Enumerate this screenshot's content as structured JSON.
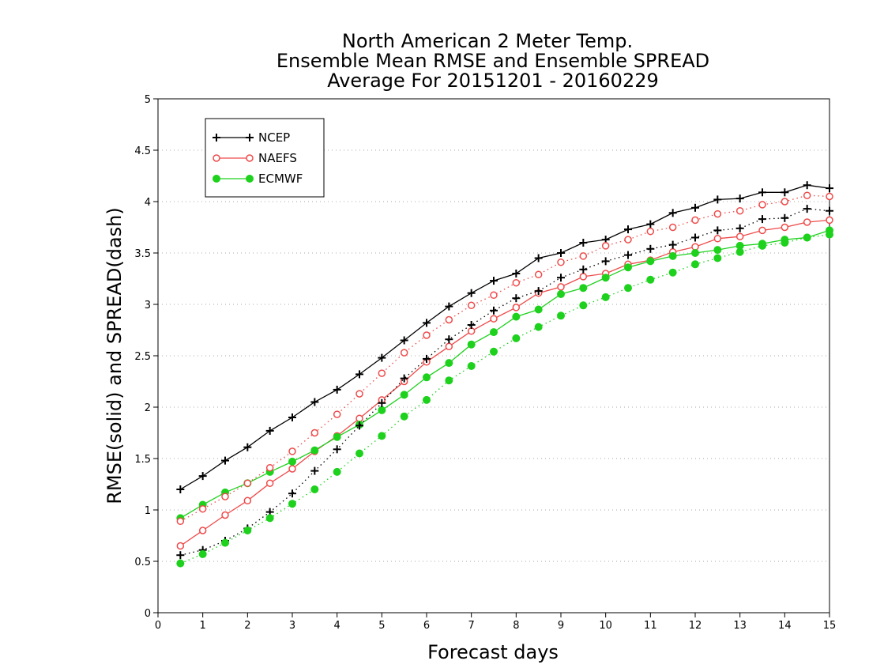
{
  "chart_data": {
    "type": "line",
    "title": [
      "North American 2 Meter Temp.",
      "Ensemble Mean RMSE and Ensemble SPREAD",
      "Average For 20151201 - 20160229"
    ],
    "xlabel": "Forecast days",
    "ylabel": "RMSE(solid) and SPREAD(dash)",
    "xlim": [
      0,
      15
    ],
    "ylim": [
      0,
      5
    ],
    "xticks": [
      0,
      1,
      2,
      3,
      4,
      5,
      6,
      7,
      8,
      9,
      10,
      11,
      12,
      13,
      14,
      15
    ],
    "xtick_labels": [
      "0",
      "1",
      "2",
      "3",
      "4",
      "5",
      "6",
      "7",
      "8",
      "9",
      "10",
      "11",
      "12",
      "13",
      "14",
      "15"
    ],
    "yticks": [
      0,
      0.5,
      1,
      1.5,
      2,
      2.5,
      3,
      3.5,
      4,
      4.5,
      5
    ],
    "ytick_labels": [
      "0",
      "0.5",
      "1",
      "1.5",
      "2",
      "2.5",
      "3",
      "3.5",
      "4",
      "4.5",
      "5"
    ],
    "grid": "horizontal dotted",
    "legend_placement": "top-left",
    "x": [
      0.5,
      1,
      1.5,
      2,
      2.5,
      3,
      3.5,
      4,
      4.5,
      5,
      5.5,
      6,
      6.5,
      7,
      7.5,
      8,
      8.5,
      9,
      9.5,
      10,
      10.5,
      11,
      11.5,
      12,
      12.5,
      13,
      13.5,
      14,
      14.5,
      15
    ],
    "series": [
      {
        "name": "NCEP",
        "metric": "RMSE",
        "style": "solid",
        "color": "#000000",
        "marker": "plus",
        "legend": true,
        "values": [
          1.2,
          1.33,
          1.48,
          1.61,
          1.77,
          1.9,
          2.05,
          2.17,
          2.32,
          2.48,
          2.65,
          2.82,
          2.98,
          3.11,
          3.23,
          3.3,
          3.45,
          3.5,
          3.6,
          3.63,
          3.73,
          3.78,
          3.89,
          3.94,
          4.02,
          4.03,
          4.09,
          4.09,
          4.16,
          4.13
        ]
      },
      {
        "name": "NAEFS",
        "metric": "RMSE",
        "style": "solid",
        "color": "#ef4a4a",
        "marker": "circle",
        "legend": true,
        "values": [
          0.65,
          0.8,
          0.95,
          1.09,
          1.26,
          1.4,
          1.57,
          1.72,
          1.89,
          2.07,
          2.25,
          2.44,
          2.59,
          2.74,
          2.86,
          2.97,
          3.11,
          3.17,
          3.27,
          3.3,
          3.39,
          3.43,
          3.51,
          3.56,
          3.64,
          3.66,
          3.72,
          3.75,
          3.8,
          3.82
        ]
      },
      {
        "name": "ECMWF",
        "metric": "RMSE",
        "style": "solid",
        "color": "#1dd11d",
        "marker": "dot",
        "legend": true,
        "values": [
          0.92,
          1.05,
          1.17,
          1.26,
          1.37,
          1.47,
          1.58,
          1.71,
          1.83,
          1.97,
          2.12,
          2.29,
          2.43,
          2.61,
          2.73,
          2.88,
          2.95,
          3.1,
          3.16,
          3.26,
          3.36,
          3.42,
          3.47,
          3.5,
          3.53,
          3.57,
          3.59,
          3.63,
          3.65,
          3.72
        ]
      },
      {
        "name": "NCEP",
        "metric": "SPREAD",
        "style": "dash",
        "color": "#000000",
        "marker": "plus",
        "legend": false,
        "values": [
          0.56,
          0.61,
          0.7,
          0.82,
          0.98,
          1.16,
          1.38,
          1.59,
          1.82,
          2.04,
          2.28,
          2.47,
          2.66,
          2.8,
          2.94,
          3.06,
          3.13,
          3.26,
          3.34,
          3.42,
          3.48,
          3.54,
          3.58,
          3.65,
          3.72,
          3.74,
          3.83,
          3.84,
          3.93,
          3.91
        ]
      },
      {
        "name": "NAEFS",
        "metric": "SPREAD",
        "style": "dash",
        "color": "#ef4a4a",
        "marker": "circle",
        "legend": false,
        "values": [
          0.89,
          1.01,
          1.13,
          1.26,
          1.41,
          1.57,
          1.75,
          1.93,
          2.13,
          2.33,
          2.53,
          2.7,
          2.85,
          2.99,
          3.09,
          3.21,
          3.29,
          3.41,
          3.47,
          3.57,
          3.63,
          3.71,
          3.75,
          3.82,
          3.88,
          3.91,
          3.97,
          4.0,
          4.06,
          4.05
        ]
      },
      {
        "name": "ECMWF",
        "metric": "SPREAD",
        "style": "dash",
        "color": "#1dd11d",
        "marker": "dot",
        "legend": false,
        "values": [
          0.48,
          0.57,
          0.68,
          0.8,
          0.92,
          1.06,
          1.2,
          1.37,
          1.55,
          1.72,
          1.91,
          2.07,
          2.26,
          2.4,
          2.54,
          2.67,
          2.78,
          2.89,
          2.99,
          3.07,
          3.16,
          3.24,
          3.31,
          3.39,
          3.45,
          3.51,
          3.57,
          3.6,
          3.65,
          3.68
        ]
      }
    ]
  }
}
